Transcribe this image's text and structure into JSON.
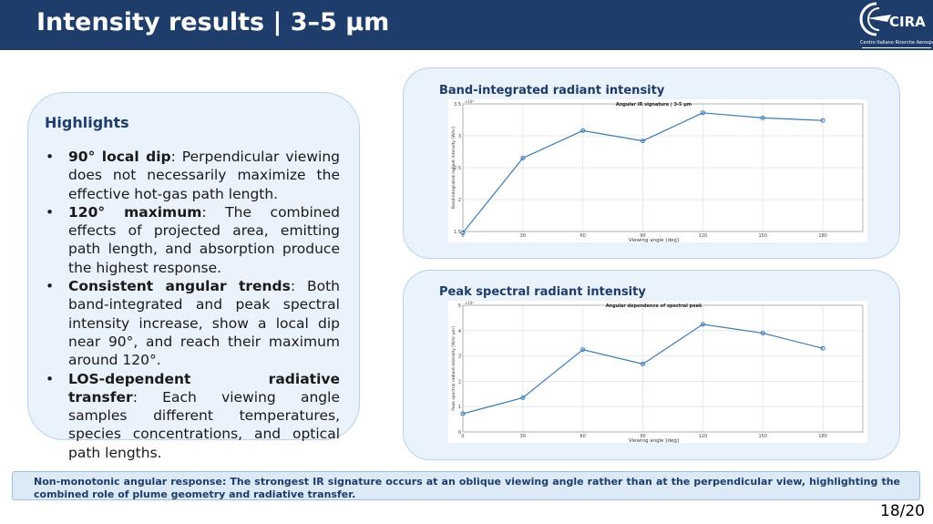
{
  "slide": {
    "title": "Intensity results | 3–5 µm",
    "page_number": "18/20"
  },
  "logo": {
    "name": "CIRA",
    "subtitle": "Centro Italiano Ricerche Aerospaziali"
  },
  "highlights": {
    "heading": "Highlights",
    "items": [
      {
        "term": "90° local dip",
        "text": ": Perpendicular viewing does not necessarily maximize the effective hot-gas path length."
      },
      {
        "term": "120° maximum",
        "text": ": The combined effects of projected area, emitting path length, and absorption produce the highest response."
      },
      {
        "term": "Consistent angular trends",
        "text": ": Both band-integrated and peak spectral intensity increase, show a local dip near 90°, and reach their maximum around 120°."
      },
      {
        "term": "LOS-dependent radiative transfer",
        "text": ": Each viewing angle samples different temperatures, species concentrations, and optical path lengths."
      }
    ]
  },
  "panels": [
    {
      "title": "Band-integrated radiant intensity"
    },
    {
      "title": "Peak spectral radiant intensity"
    }
  ],
  "callout": {
    "text": "Non-monotonic angular response: The strongest IR signature occurs at an oblique viewing angle rather than at the perpendicular view, highlighting the combined role of plume geometry and radiative transfer."
  },
  "colors": {
    "header": "#1e3d6b",
    "line": "#3a7ab5",
    "panel": "#eaf2fb"
  },
  "chart_data": [
    {
      "type": "line",
      "title": "Angular IR signature | 3-5 µm",
      "xlabel": "Viewing angle [deg]",
      "ylabel": "Band-integrated radiant intensity [W/sr]",
      "x": [
        0,
        30,
        60,
        90,
        120,
        150,
        180
      ],
      "values": [
        1.48,
        2.65,
        3.08,
        2.92,
        3.36,
        3.28,
        3.24
      ],
      "xticks": [
        0,
        30,
        60,
        90,
        120,
        150,
        180
      ],
      "yticks": [
        1.5,
        2,
        2.5,
        3,
        3.5
      ],
      "xlim": [
        0,
        200
      ],
      "ylim": [
        1.5,
        3.5
      ],
      "multiplier": "×10⁵",
      "grid": true
    },
    {
      "type": "line",
      "title": "Angular dependence of spectral peak",
      "xlabel": "Viewing angle [deg]",
      "ylabel": "Peak spectral radiant intensity [W/sr·µm]",
      "x": [
        0,
        30,
        60,
        90,
        120,
        150,
        180
      ],
      "values": [
        0.72,
        1.35,
        3.25,
        2.68,
        4.25,
        3.9,
        3.3
      ],
      "xticks": [
        0,
        30,
        60,
        90,
        120,
        150,
        180
      ],
      "yticks": [
        0,
        1,
        2,
        3,
        4,
        5
      ],
      "xlim": [
        0,
        200
      ],
      "ylim": [
        0,
        5
      ],
      "multiplier": "×10⁵",
      "grid": true
    }
  ]
}
